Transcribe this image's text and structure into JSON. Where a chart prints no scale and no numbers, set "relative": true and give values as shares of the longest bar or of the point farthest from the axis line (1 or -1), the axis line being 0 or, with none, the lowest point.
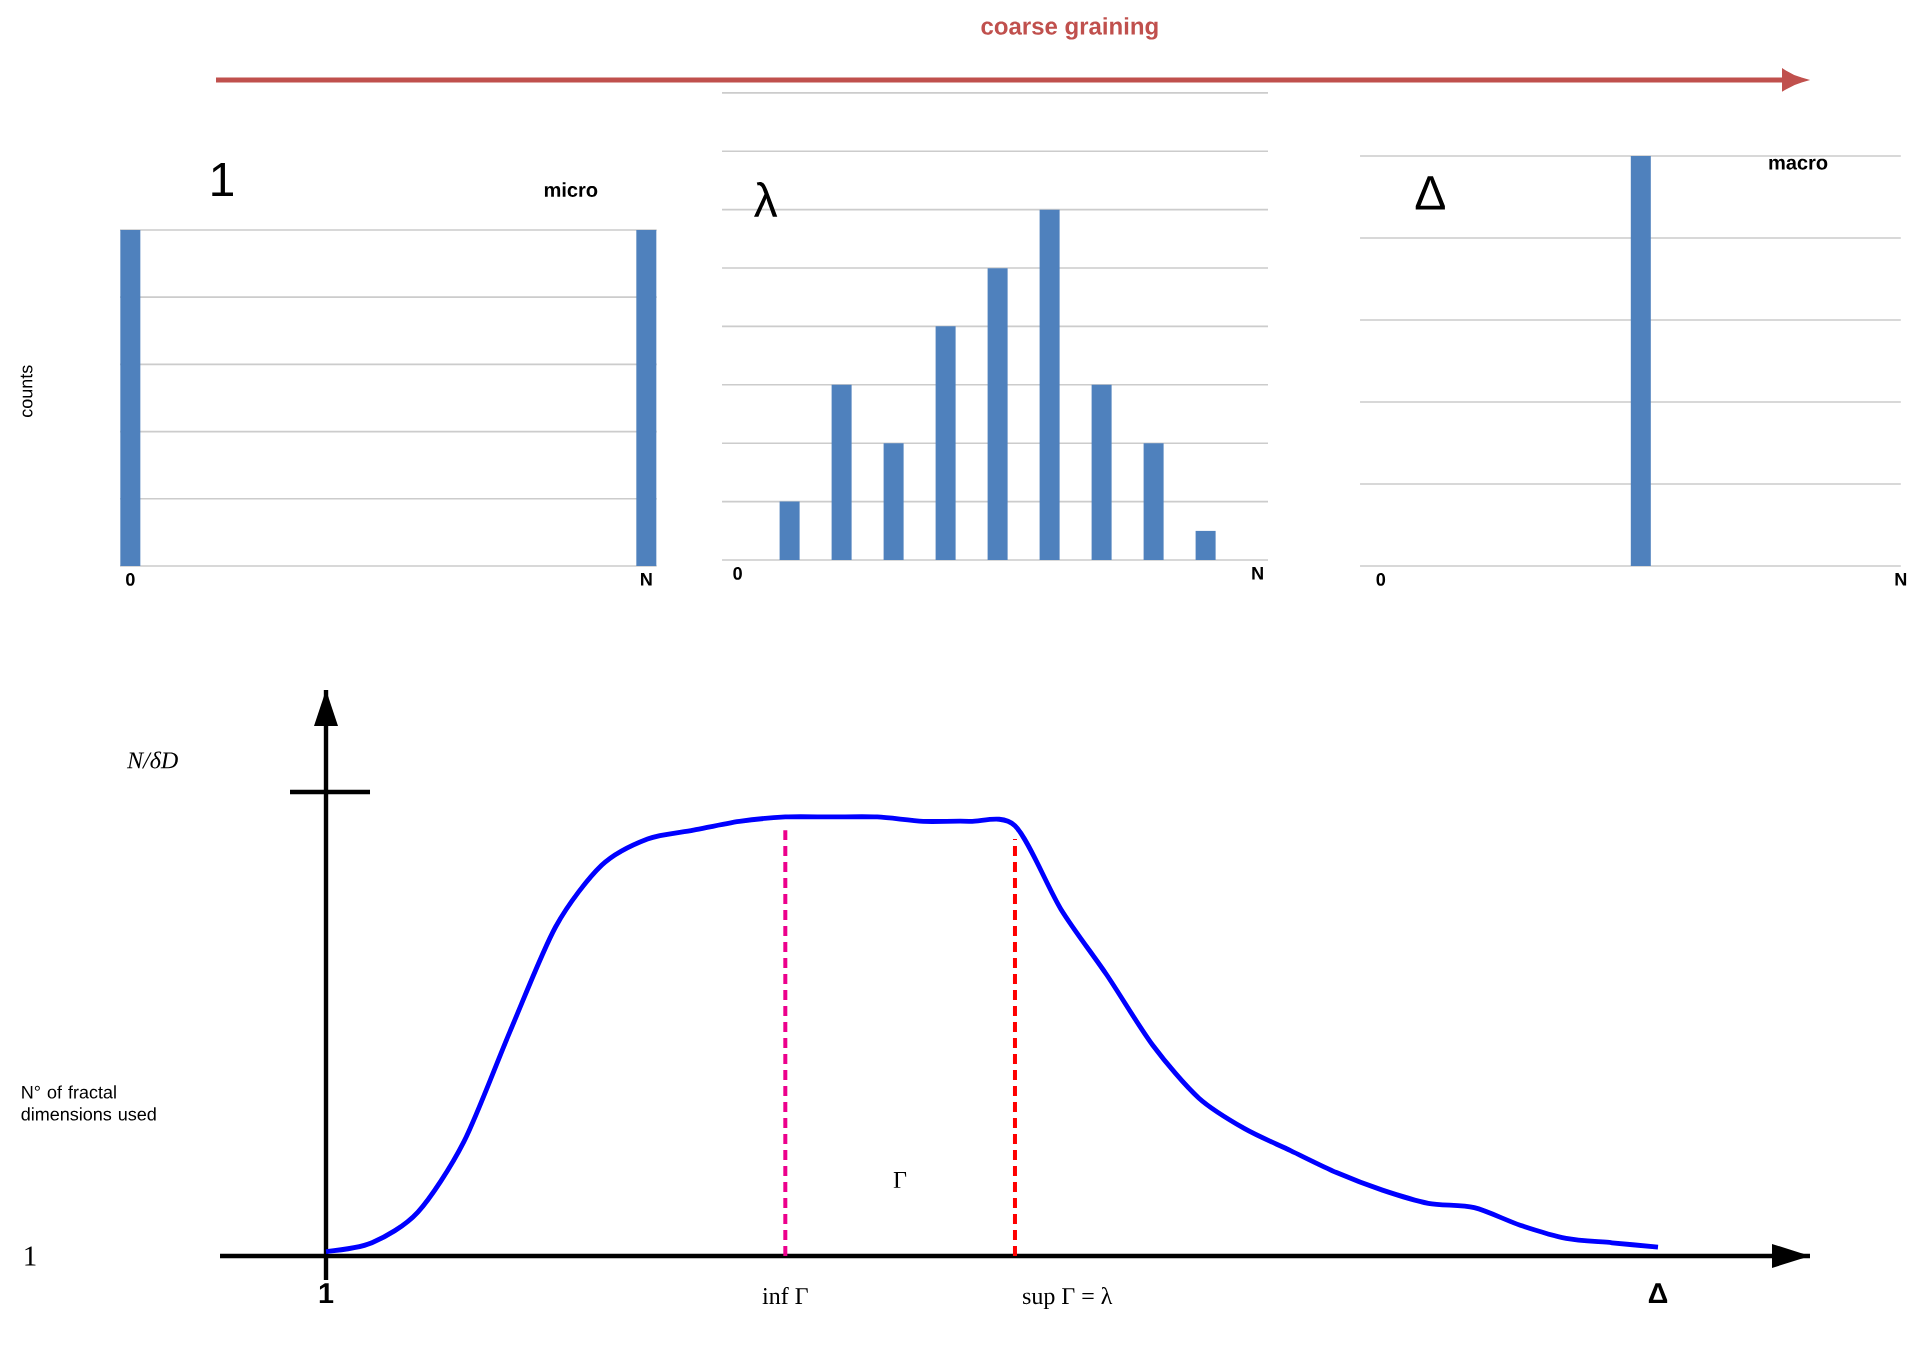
{
  "chart_data": [
    {
      "type": "bar",
      "title": "1",
      "ylabel": "counts",
      "relative": true,
      "grid": "y",
      "color": "#4f81bd",
      "categories": [
        "0",
        null,
        null,
        null,
        null,
        null,
        null,
        null,
        null,
        null,
        "N"
      ],
      "values": [
        1,
        null,
        null,
        null,
        null,
        null,
        null,
        null,
        null,
        null,
        1
      ],
      "annotations": [
        "micro",
        "coarse graining"
      ]
    },
    {
      "type": "bar",
      "title": "λ",
      "relative": true,
      "grid": "y",
      "color": "#4f81bd",
      "categories": [
        "0",
        null,
        null,
        null,
        null,
        null,
        null,
        null,
        null,
        null,
        "N"
      ],
      "values": [
        null,
        0.167,
        0.5,
        0.333,
        0.667,
        0.833,
        1,
        0.5,
        0.333,
        0.083,
        null
      ]
    },
    {
      "type": "bar",
      "title": "Δ",
      "relative": true,
      "grid": "y",
      "color": "#4f81bd",
      "categories": [
        "0",
        null,
        null,
        null,
        null,
        null,
        null,
        null,
        null,
        null,
        "N"
      ],
      "values": [
        null,
        null,
        null,
        null,
        null,
        1,
        null,
        null,
        null,
        null,
        null
      ],
      "annotations": [
        "macro"
      ]
    },
    {
      "type": "line",
      "ylabel": "N° of fractal dimensions used",
      "color": "#0000ff",
      "relative": true,
      "categories": [
        "1",
        null,
        null,
        null,
        null,
        null,
        null,
        null,
        null,
        null,
        null,
        null,
        null,
        null,
        null,
        null,
        null,
        null,
        null,
        null,
        null,
        null,
        null,
        null,
        null,
        null,
        null,
        null,
        null,
        "Δ"
      ],
      "values": [
        0.01,
        0.03,
        0.1,
        0.26,
        0.51,
        0.75,
        0.89,
        0.95,
        0.97,
        0.99,
        1.0,
        1.0,
        1.0,
        0.99,
        0.99,
        0.98,
        0.79,
        0.64,
        0.48,
        0.36,
        0.29,
        0.24,
        0.19,
        0.15,
        0.12,
        0.11,
        0.07,
        0.04,
        0.03,
        0.02
      ],
      "annotations": [
        "1",
        "N/δD",
        "Γ",
        "inf Γ",
        "sup Γ = λ"
      ]
    }
  ]
}
